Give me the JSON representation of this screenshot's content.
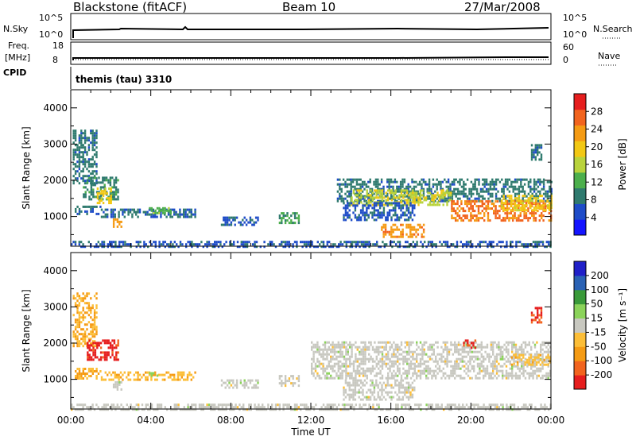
{
  "header": {
    "station": "Blackstone (fitACF)",
    "beam": "Beam 10",
    "date": "27/Mar/2008"
  },
  "top_panels": {
    "nsky_label": "N.Sky",
    "nsearch_label": "N.Search",
    "nsky_ticks": [
      "10^5",
      "10^0"
    ],
    "nsearch_ticks": [
      "10^5",
      "10^0"
    ],
    "freq_label_1": "Freq.",
    "freq_label_2": "[MHz]",
    "freq_ticks": [
      "18",
      "8"
    ],
    "nave_label": "Nave",
    "nave_ticks": [
      "60",
      "0"
    ],
    "cpid_label": "CPID",
    "cpid_value": "themis (tau) 3310"
  },
  "colors": {
    "power_scale": [
      "#1414ff",
      "#1e4cc8",
      "#2f7a6e",
      "#4caf4c",
      "#b9d33c",
      "#f2c814",
      "#f59b14",
      "#f2641e",
      "#e61e1e"
    ],
    "velocity_scale": [
      "#e61e1e",
      "#f2641e",
      "#f59b14",
      "#fcbe37",
      "#c8c8c0",
      "#8bd35a",
      "#3a9a3a",
      "#2a62b4",
      "#2020c8"
    ]
  },
  "chart_data": [
    {
      "type": "heatmap",
      "panel": "power",
      "ylabel": "Slant Range [km]",
      "ylim": [
        180,
        4500
      ],
      "yticks": [
        "4000",
        "3000",
        "2000",
        "1000"
      ],
      "xlim": [
        0,
        24
      ],
      "colorbar_label": "Power [dB]",
      "colorbar_ticks": [
        "28",
        "24",
        "20",
        "16",
        "12",
        "8",
        "4"
      ],
      "colorbar_range": [
        0,
        30
      ],
      "regions": [
        {
          "t0": 0.1,
          "t1": 1.3,
          "r0": 1900,
          "r1": 3400,
          "v": 8
        },
        {
          "t0": 0.6,
          "t1": 2.4,
          "r0": 1500,
          "r1": 2100,
          "v": 9
        },
        {
          "t0": 1.3,
          "t1": 2.0,
          "r0": 1400,
          "r1": 1800,
          "v": 18
        },
        {
          "t0": 0.2,
          "t1": 1.5,
          "r0": 1050,
          "r1": 1300,
          "v": 7
        },
        {
          "t0": 1.5,
          "t1": 6.2,
          "r0": 1000,
          "r1": 1220,
          "v": 7
        },
        {
          "t0": 3.9,
          "t1": 5.0,
          "r0": 1080,
          "r1": 1260,
          "v": 12
        },
        {
          "t0": 2.1,
          "t1": 2.5,
          "r0": 700,
          "r1": 950,
          "v": 22
        },
        {
          "t0": 7.5,
          "t1": 9.4,
          "r0": 750,
          "r1": 1000,
          "v": 6
        },
        {
          "t0": 10.4,
          "t1": 11.4,
          "r0": 850,
          "r1": 1120,
          "v": 10
        },
        {
          "t0": 13.3,
          "t1": 24.0,
          "r0": 1400,
          "r1": 2050,
          "v": 8
        },
        {
          "t0": 14.0,
          "t1": 19.0,
          "r0": 1350,
          "r1": 1750,
          "v": 16
        },
        {
          "t0": 13.6,
          "t1": 17.2,
          "r0": 900,
          "r1": 1400,
          "v": 6
        },
        {
          "t0": 15.5,
          "t1": 17.6,
          "r0": 450,
          "r1": 800,
          "v": 22
        },
        {
          "t0": 19.0,
          "t1": 24.0,
          "r0": 900,
          "r1": 1450,
          "v": 24
        },
        {
          "t0": 21.5,
          "t1": 24.0,
          "r0": 1200,
          "r1": 1600,
          "v": 18
        },
        {
          "t0": 23.0,
          "t1": 23.5,
          "r0": 2600,
          "r1": 3000,
          "v": 8
        },
        {
          "t0": 0.0,
          "t1": 24.0,
          "r0": 190,
          "r1": 330,
          "v": 6
        }
      ]
    },
    {
      "type": "heatmap",
      "panel": "velocity",
      "ylabel": "Slant Range [km]",
      "xlabel": "Time UT",
      "ylim": [
        180,
        4500
      ],
      "yticks": [
        "4000",
        "3000",
        "2000",
        "1000"
      ],
      "xlim": [
        0,
        24
      ],
      "xticks": [
        "00:00",
        "04:00",
        "08:00",
        "12:00",
        "16:00",
        "20:00",
        "00:00"
      ],
      "colorbar_label": "Velocity [m s⁻¹]",
      "colorbar_ticks": [
        "200",
        "100",
        "50",
        "15",
        "-15",
        "-50",
        "-100",
        "-200"
      ],
      "colorbar_range": [
        -250,
        250
      ],
      "regions": [
        {
          "t0": 0.1,
          "t1": 1.3,
          "r0": 1900,
          "r1": 3400,
          "v": -80
        },
        {
          "t0": 0.8,
          "t1": 2.4,
          "r0": 1550,
          "r1": 2100,
          "v": -220
        },
        {
          "t0": 0.2,
          "t1": 1.5,
          "r0": 1050,
          "r1": 1320,
          "v": -80
        },
        {
          "t0": 1.5,
          "t1": 6.2,
          "r0": 1000,
          "r1": 1220,
          "v": -70
        },
        {
          "t0": 3.9,
          "t1": 4.3,
          "r0": 1080,
          "r1": 1200,
          "v": 60
        },
        {
          "t0": 2.1,
          "t1": 2.5,
          "r0": 700,
          "r1": 950,
          "v": 0
        },
        {
          "t0": 7.5,
          "t1": 9.4,
          "r0": 750,
          "r1": 1000,
          "v": 0
        },
        {
          "t0": 10.4,
          "t1": 11.4,
          "r0": 850,
          "r1": 1120,
          "v": -5
        },
        {
          "t0": 12.0,
          "t1": 24.0,
          "r0": 1000,
          "r1": 2050,
          "v": 0
        },
        {
          "t0": 13.6,
          "t1": 17.2,
          "r0": 450,
          "r1": 1000,
          "v": 0
        },
        {
          "t0": 19.6,
          "t1": 20.2,
          "r0": 1850,
          "r1": 2100,
          "v": -200
        },
        {
          "t0": 22.0,
          "t1": 24.0,
          "r0": 1400,
          "r1": 1700,
          "v": -60
        },
        {
          "t0": 23.0,
          "t1": 23.5,
          "r0": 2600,
          "r1": 3000,
          "v": -200
        },
        {
          "t0": 0.0,
          "t1": 24.0,
          "r0": 190,
          "r1": 330,
          "v": 0
        }
      ]
    }
  ]
}
